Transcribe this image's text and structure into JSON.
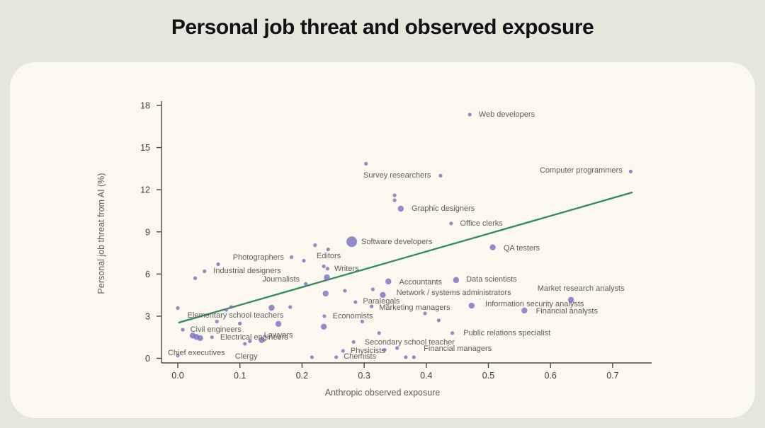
{
  "page": {
    "title": "Personal job threat and observed exposure"
  },
  "chart_data": {
    "type": "scatter",
    "title": "Personal job threat and observed exposure",
    "xlabel": "Anthropic observed exposure",
    "ylabel": "Personal job threat from AI (%)",
    "xlim": [
      -0.026,
      0.763
    ],
    "ylim": [
      -0.35,
      18.3
    ],
    "x_ticks": [
      0.0,
      0.1,
      0.2,
      0.3,
      0.4,
      0.5,
      0.6,
      0.7
    ],
    "y_ticks": [
      0,
      3,
      6,
      9,
      12,
      15,
      18
    ],
    "grid": false,
    "legend": false,
    "trend_line": {
      "x1": 0.002,
      "y1": 2.55,
      "x2": 0.731,
      "y2": 11.8
    },
    "points": [
      {
        "label": "Web developers",
        "x": 0.47,
        "y": 17.35,
        "size": 1,
        "side": "right",
        "off": [
          6,
          0
        ]
      },
      {
        "label": "Computer programmers",
        "x": 0.729,
        "y": 13.3,
        "size": 1,
        "side": "left",
        "off": [
          -5,
          -1
        ]
      },
      {
        "label": "Survey researchers",
        "x": 0.423,
        "y": 13.0,
        "size": 1,
        "side": "left",
        "off": [
          -7,
          0
        ]
      },
      {
        "label": "Graphic designers",
        "x": 0.359,
        "y": 10.65,
        "size": 2,
        "side": "right",
        "off": [
          7,
          0
        ]
      },
      {
        "label": "Office clerks",
        "x": 0.44,
        "y": 9.6,
        "size": 1,
        "side": "right",
        "off": [
          6,
          0
        ]
      },
      {
        "label": "Software developers",
        "x": 0.28,
        "y": 8.3,
        "size": 3,
        "side": "right",
        "off": [
          2,
          0
        ]
      },
      {
        "label": "QA testers",
        "x": 0.507,
        "y": 7.9,
        "size": 2,
        "side": "right",
        "off": [
          7,
          1
        ]
      },
      {
        "label": "Photographers",
        "x": 0.183,
        "y": 7.2,
        "size": 1,
        "side": "left",
        "off": [
          -4,
          0
        ]
      },
      {
        "label": "Editors",
        "x": 0.235,
        "y": 6.55,
        "size": 1,
        "side": "above",
        "off": [
          7,
          -2
        ]
      },
      {
        "label": "Writers",
        "x": 0.241,
        "y": 6.38,
        "size": 1,
        "side": "right",
        "off": [
          3,
          0
        ]
      },
      {
        "label": "Industrial designers",
        "x": 0.043,
        "y": 6.2,
        "size": 1,
        "side": "right",
        "off": [
          6,
          0
        ]
      },
      {
        "label": "Journalists",
        "x": 0.206,
        "y": 5.3,
        "size": 1,
        "side": "left",
        "off": [
          -2,
          -6
        ]
      },
      {
        "label": "Accountants",
        "x": 0.339,
        "y": 5.47,
        "size": 2,
        "side": "right",
        "off": [
          7,
          1
        ]
      },
      {
        "label": "Data scientists",
        "x": 0.448,
        "y": 5.57,
        "size": 2,
        "side": "right",
        "off": [
          6,
          -1
        ]
      },
      {
        "label": "Network / systems administrators",
        "x": 0.33,
        "y": 4.51,
        "size": 2,
        "side": "right",
        "off": [
          11,
          -3
        ]
      },
      {
        "label": "Paralegals",
        "x": 0.286,
        "y": 4.0,
        "size": 1,
        "side": "right",
        "off": [
          4,
          -1
        ]
      },
      {
        "label": "Marketing managers",
        "x": 0.312,
        "y": 3.7,
        "size": 1,
        "side": "right",
        "off": [
          4,
          2
        ]
      },
      {
        "label": "Market research analysts",
        "x": 0.633,
        "y": 4.16,
        "size": 2,
        "side": "above",
        "off": [
          14,
          -2
        ]
      },
      {
        "label": "Information security analysts",
        "x": 0.473,
        "y": 3.75,
        "size": 2,
        "side": "right",
        "off": [
          11,
          -2
        ]
      },
      {
        "label": "Financial analysts",
        "x": 0.558,
        "y": 3.4,
        "size": 2,
        "side": "right",
        "off": [
          8,
          1
        ]
      },
      {
        "label": "Economists",
        "x": 0.236,
        "y": 3.0,
        "size": 1,
        "side": "right",
        "off": [
          5,
          0
        ]
      },
      {
        "label": "Public relations specialist",
        "x": 0.442,
        "y": 1.8,
        "size": 1,
        "side": "right",
        "off": [
          9,
          0
        ]
      },
      {
        "label": "Elementary school teachers",
        "x": 0.0,
        "y": 3.58,
        "size": 1,
        "side": "right",
        "off": [
          7,
          11
        ]
      },
      {
        "label": "Civil engineers",
        "x": 0.008,
        "y": 2.04,
        "size": 1,
        "side": "right",
        "off": [
          4,
          0
        ]
      },
      {
        "label": "Lawyers",
        "x": 0.162,
        "y": 2.45,
        "size": 2,
        "side": "below",
        "off": [
          0,
          2
        ]
      },
      {
        "label": "Electrical engineers",
        "x": 0.055,
        "y": 1.5,
        "size": 1,
        "side": "right",
        "off": [
          5,
          0
        ]
      },
      {
        "label": "Chief executives",
        "x": 0.03,
        "y": 1.52,
        "size": 2,
        "side": "below",
        "off": [
          0,
          8
        ]
      },
      {
        "label": "Clergy",
        "x": 0.108,
        "y": 1.03,
        "size": 1,
        "side": "below",
        "off": [
          2,
          5
        ]
      },
      {
        "label": "Secondary school teacher",
        "x": 0.283,
        "y": 1.16,
        "size": 1,
        "side": "right",
        "off": [
          9,
          1
        ]
      },
      {
        "label": "Physicists",
        "x": 0.266,
        "y": 0.53,
        "size": 1,
        "side": "right",
        "off": [
          4,
          0
        ]
      },
      {
        "label": "Chemists",
        "x": 0.255,
        "y": 0.08,
        "size": 1,
        "side": "right",
        "off": [
          4,
          -1
        ]
      },
      {
        "label": "Financial managers",
        "x": 0.353,
        "y": 0.73,
        "size": 1,
        "side": "right",
        "off": [
          31,
          1
        ]
      }
    ],
    "unlabeled_points": [
      {
        "x": 0.303,
        "y": 13.85,
        "size": 1
      },
      {
        "x": 0.349,
        "y": 11.6,
        "size": 1
      },
      {
        "x": 0.349,
        "y": 11.25,
        "size": 1
      },
      {
        "x": 0.221,
        "y": 8.05,
        "size": 1
      },
      {
        "x": 0.242,
        "y": 7.75,
        "size": 1
      },
      {
        "x": 0.203,
        "y": 6.95,
        "size": 1
      },
      {
        "x": 0.065,
        "y": 6.7,
        "size": 1
      },
      {
        "x": 0.028,
        "y": 5.7,
        "size": 1
      },
      {
        "x": 0.24,
        "y": 5.77,
        "size": 2
      },
      {
        "x": 0.238,
        "y": 4.61,
        "size": 2
      },
      {
        "x": 0.269,
        "y": 4.81,
        "size": 1
      },
      {
        "x": 0.314,
        "y": 4.91,
        "size": 1
      },
      {
        "x": 0.398,
        "y": 3.2,
        "size": 1
      },
      {
        "x": 0.42,
        "y": 2.7,
        "size": 1
      },
      {
        "x": 0.297,
        "y": 2.62,
        "size": 1
      },
      {
        "x": 0.235,
        "y": 2.25,
        "size": 2
      },
      {
        "x": 0.324,
        "y": 1.8,
        "size": 1
      },
      {
        "x": 0.151,
        "y": 3.6,
        "size": 2
      },
      {
        "x": 0.181,
        "y": 3.65,
        "size": 1
      },
      {
        "x": 0.078,
        "y": 3.45,
        "size": 1
      },
      {
        "x": 0.086,
        "y": 3.65,
        "size": 1
      },
      {
        "x": 0.1,
        "y": 2.48,
        "size": 1
      },
      {
        "x": 0.063,
        "y": 2.62,
        "size": 1
      },
      {
        "x": 0.135,
        "y": 1.3,
        "size": 2
      },
      {
        "x": 0.116,
        "y": 1.22,
        "size": 1
      },
      {
        "x": 0.024,
        "y": 1.62,
        "size": 2
      },
      {
        "x": 0.036,
        "y": 1.44,
        "size": 2
      },
      {
        "x": 0.0,
        "y": 0.2,
        "size": 1
      },
      {
        "x": 0.216,
        "y": 0.08,
        "size": 1
      },
      {
        "x": 0.333,
        "y": 0.6,
        "size": 1
      },
      {
        "x": 0.367,
        "y": 0.08,
        "size": 1
      },
      {
        "x": 0.38,
        "y": 0.08,
        "size": 1
      }
    ],
    "colors": {
      "dot": "#7b71c2",
      "trend": "#35895d",
      "axis": "#4a4943",
      "tick_text": "#403f3b",
      "label_text": "#5e5d57",
      "card_bg": "#faf8ef",
      "page_bg": "#e5e7da",
      "title": "#121212"
    }
  }
}
